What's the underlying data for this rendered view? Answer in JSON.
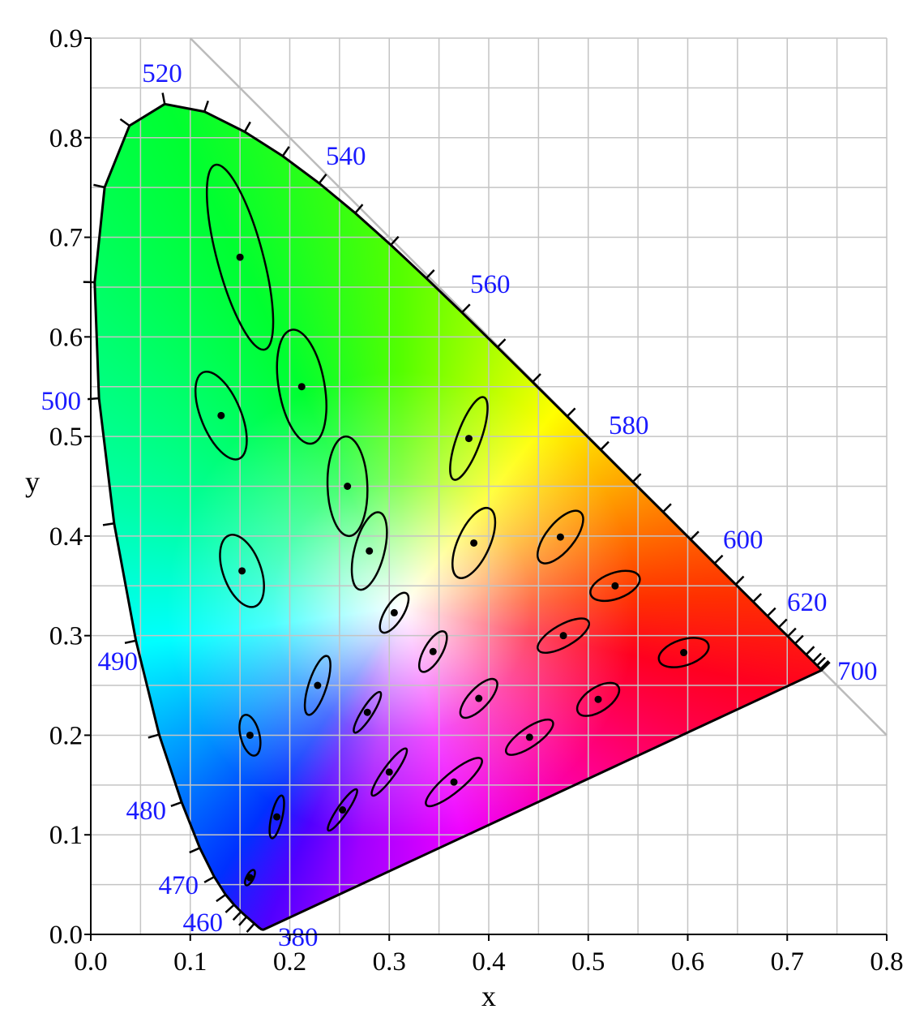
{
  "chart_data": {
    "type": "scatter",
    "xlabel": "x",
    "ylabel": "y",
    "xlim": [
      0.0,
      0.8
    ],
    "ylim": [
      0.0,
      0.9
    ],
    "grid": true,
    "grid_step": 0.05,
    "x_ticks": [
      "0.0",
      "0.1",
      "0.2",
      "0.3",
      "0.4",
      "0.5",
      "0.6",
      "0.7",
      "0.8"
    ],
    "y_ticks": [
      "0.0",
      "0.1",
      "0.2",
      "0.3",
      "0.4",
      "0.5",
      "0.6",
      "0.7",
      "0.8",
      "0.9"
    ],
    "reference_line": {
      "from": [
        0.1,
        0.9
      ],
      "to": [
        0.8,
        0.2
      ],
      "color": "#bbbbbb"
    },
    "wavelength_label_color": "#1a1aff",
    "wavelength_labels": [
      "380",
      "460",
      "470",
      "480",
      "490",
      "500",
      "520",
      "540",
      "560",
      "580",
      "600",
      "620",
      "700"
    ],
    "spectral_locus": [
      [
        380,
        0.1741,
        0.005
      ],
      [
        390,
        0.1738,
        0.0049
      ],
      [
        400,
        0.1733,
        0.0048
      ],
      [
        410,
        0.1726,
        0.0048
      ],
      [
        420,
        0.1714,
        0.0051
      ],
      [
        430,
        0.1689,
        0.0069
      ],
      [
        440,
        0.1644,
        0.0109
      ],
      [
        450,
        0.1566,
        0.0177
      ],
      [
        455,
        0.151,
        0.0227
      ],
      [
        460,
        0.144,
        0.0297
      ],
      [
        465,
        0.1355,
        0.0399
      ],
      [
        470,
        0.1241,
        0.0578
      ],
      [
        475,
        0.1096,
        0.0868
      ],
      [
        480,
        0.0913,
        0.1327
      ],
      [
        485,
        0.0687,
        0.2007
      ],
      [
        490,
        0.0454,
        0.295
      ],
      [
        495,
        0.0235,
        0.4127
      ],
      [
        500,
        0.0082,
        0.5384
      ],
      [
        505,
        0.0039,
        0.6548
      ],
      [
        510,
        0.0139,
        0.7502
      ],
      [
        515,
        0.0389,
        0.812
      ],
      [
        520,
        0.0743,
        0.8338
      ],
      [
        525,
        0.1142,
        0.8262
      ],
      [
        530,
        0.1547,
        0.8059
      ],
      [
        535,
        0.1929,
        0.7816
      ],
      [
        540,
        0.2296,
        0.7543
      ],
      [
        545,
        0.2658,
        0.7243
      ],
      [
        550,
        0.3016,
        0.6923
      ],
      [
        555,
        0.3373,
        0.6589
      ],
      [
        560,
        0.3731,
        0.6245
      ],
      [
        565,
        0.4087,
        0.5896
      ],
      [
        570,
        0.4441,
        0.5547
      ],
      [
        575,
        0.4788,
        0.5202
      ],
      [
        580,
        0.5125,
        0.4866
      ],
      [
        585,
        0.5448,
        0.4544
      ],
      [
        590,
        0.5752,
        0.4242
      ],
      [
        595,
        0.6029,
        0.3965
      ],
      [
        600,
        0.627,
        0.3725
      ],
      [
        605,
        0.6482,
        0.3514
      ],
      [
        610,
        0.6658,
        0.334
      ],
      [
        615,
        0.6801,
        0.3197
      ],
      [
        620,
        0.6915,
        0.3083
      ],
      [
        625,
        0.7006,
        0.2993
      ],
      [
        630,
        0.7079,
        0.292
      ],
      [
        640,
        0.719,
        0.2809
      ],
      [
        650,
        0.726,
        0.274
      ],
      [
        660,
        0.73,
        0.27
      ],
      [
        680,
        0.7334,
        0.2666
      ],
      [
        700,
        0.7347,
        0.2653
      ]
    ],
    "ellipse_scale": "10x",
    "ellipses_columns": [
      "x",
      "y",
      "a (x10^-3)",
      "b (x10^-3)",
      "theta (deg)"
    ],
    "ellipses": [
      [
        0.16,
        0.057,
        0.85,
        0.35,
        62.5
      ],
      [
        0.187,
        0.118,
        2.2,
        0.55,
        77
      ],
      [
        0.253,
        0.125,
        2.5,
        0.5,
        55.5
      ],
      [
        0.15,
        0.68,
        9.6,
        2.3,
        105
      ],
      [
        0.131,
        0.521,
        4.7,
        2.0,
        112.5
      ],
      [
        0.212,
        0.55,
        5.8,
        2.3,
        100
      ],
      [
        0.258,
        0.45,
        5.0,
        2.0,
        92
      ],
      [
        0.152,
        0.365,
        3.8,
        1.9,
        110
      ],
      [
        0.28,
        0.385,
        4.0,
        1.5,
        75.5
      ],
      [
        0.38,
        0.498,
        4.4,
        1.2,
        70
      ],
      [
        0.16,
        0.2,
        2.1,
        0.95,
        104
      ],
      [
        0.228,
        0.25,
        3.1,
        0.9,
        72
      ],
      [
        0.305,
        0.323,
        2.3,
        0.9,
        58
      ],
      [
        0.385,
        0.393,
        3.8,
        1.6,
        65.5
      ],
      [
        0.472,
        0.399,
        3.2,
        1.4,
        51
      ],
      [
        0.527,
        0.35,
        2.6,
        1.3,
        20
      ],
      [
        0.475,
        0.3,
        2.9,
        1.1,
        29.5
      ],
      [
        0.51,
        0.236,
        2.4,
        1.2,
        33.5
      ],
      [
        0.596,
        0.283,
        2.6,
        1.3,
        18
      ],
      [
        0.344,
        0.284,
        2.3,
        0.9,
        60
      ],
      [
        0.39,
        0.237,
        2.5,
        1.0,
        47
      ],
      [
        0.441,
        0.198,
        2.8,
        0.95,
        34.5
      ],
      [
        0.278,
        0.223,
        2.4,
        0.55,
        57.5
      ],
      [
        0.3,
        0.163,
        2.9,
        0.6,
        54
      ],
      [
        0.365,
        0.153,
        3.6,
        0.95,
        40
      ]
    ]
  }
}
